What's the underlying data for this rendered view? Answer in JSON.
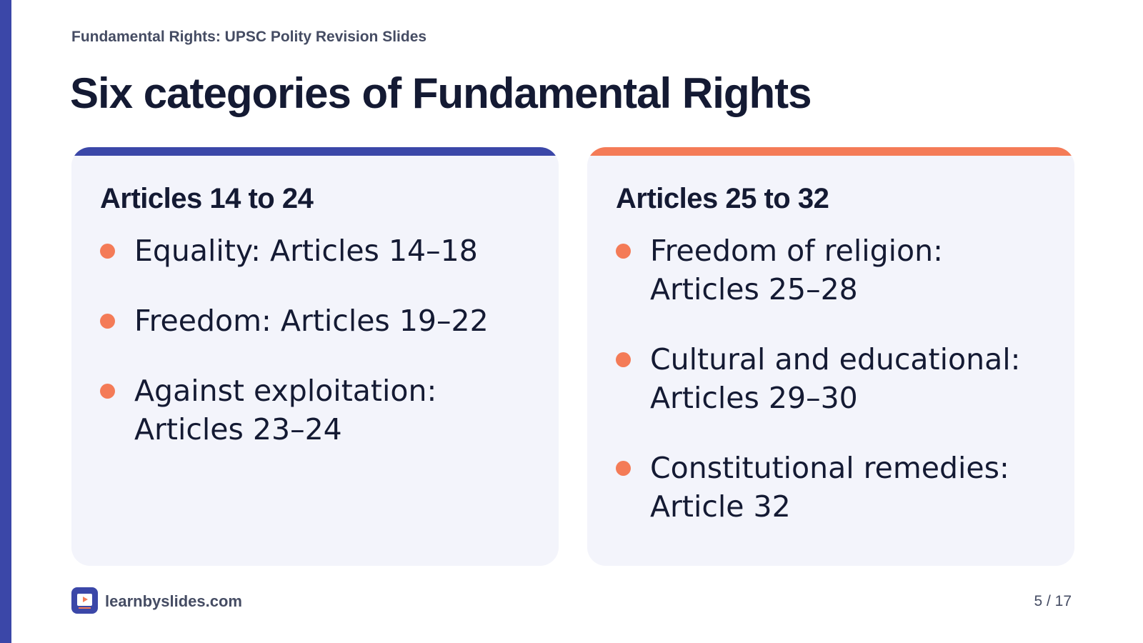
{
  "deck_title": "Fundamental Rights: UPSC Polity Revision Slides",
  "slide_title": "Six categories of Fundamental Rights",
  "cards": [
    {
      "heading": "Articles 14 to 24",
      "accent": "#3b47a8",
      "items": [
        "Equality: Articles 14–18",
        "Freedom: Articles 19–22",
        "Against exploitation: Articles 23–24"
      ]
    },
    {
      "heading": "Articles 25 to 32",
      "accent": "#f47b57",
      "items": [
        "Freedom of religion: Articles 25–28",
        "Cultural and educational: Articles 29–30",
        "Constitutional remedies: Article 32"
      ]
    }
  ],
  "footer": {
    "site": "learnbyslides.com",
    "logo_icon": "slides-play-icon",
    "page": "5 / 17"
  },
  "colors": {
    "primary": "#3b47a8",
    "accent": "#f47b57",
    "card_bg": "#f3f4fb",
    "text": "#141a33"
  }
}
